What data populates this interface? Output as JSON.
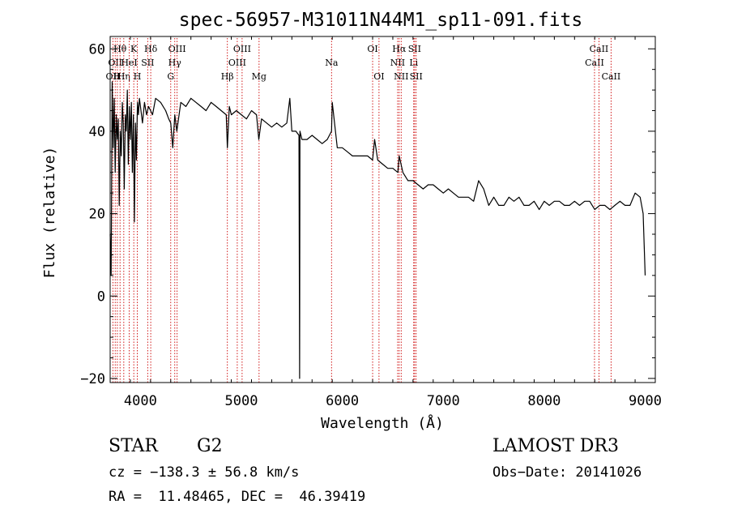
{
  "chart_data": {
    "type": "line",
    "title": "spec-56957-M31011N44M1_sp11-091.fits",
    "xlabel": "Wavelength (Å)",
    "ylabel": "Flux (relative)",
    "xlim": [
      3700,
      9100
    ],
    "ylim": [
      -21,
      63
    ],
    "x_ticks": [
      4000,
      5000,
      6000,
      7000,
      8000,
      9000
    ],
    "y_ticks": [
      -20,
      0,
      20,
      40,
      60
    ],
    "x_tick_labels": [
      "4000",
      "5000",
      "6000",
      "7000",
      "8000",
      "9000"
    ],
    "y_tick_labels": [
      "−20",
      "0",
      "20",
      "40",
      "60"
    ],
    "grid": false,
    "line_color": "#000000",
    "marker_color": "#cc0000",
    "series": [
      {
        "x": [
          3700,
          3710,
          3720,
          3730,
          3740,
          3750,
          3760,
          3770,
          3780,
          3790,
          3800,
          3810,
          3820,
          3830,
          3840,
          3850,
          3860,
          3870,
          3880,
          3890,
          3900,
          3910,
          3920,
          3930,
          3940,
          3950,
          3960,
          3970,
          3980,
          3990,
          4000,
          4020,
          4040,
          4060,
          4080,
          4100,
          4120,
          4150,
          4200,
          4250,
          4280,
          4300,
          4320,
          4340,
          4360,
          4400,
          4450,
          4500,
          4550,
          4600,
          4650,
          4700,
          4750,
          4800,
          4850,
          4861,
          4880,
          4900,
          4950,
          5000,
          5050,
          5100,
          5150,
          5172,
          5200,
          5250,
          5300,
          5350,
          5400,
          5450,
          5480,
          5500,
          5540,
          5570,
          5577,
          5580,
          5600,
          5650,
          5700,
          5750,
          5800,
          5850,
          5893,
          5900,
          5950,
          6000,
          6050,
          6100,
          6150,
          6200,
          6250,
          6300,
          6320,
          6350,
          6400,
          6450,
          6500,
          6550,
          6563,
          6600,
          6650,
          6700,
          6750,
          6800,
          6850,
          6900,
          6950,
          7000,
          7050,
          7100,
          7150,
          7200,
          7250,
          7300,
          7350,
          7400,
          7450,
          7500,
          7550,
          7600,
          7650,
          7700,
          7750,
          7800,
          7850,
          7900,
          7950,
          8000,
          8050,
          8100,
          8150,
          8200,
          8250,
          8300,
          8350,
          8400,
          8450,
          8500,
          8550,
          8600,
          8650,
          8700,
          8750,
          8800,
          8850,
          8900,
          8950,
          8980,
          9000
        ],
        "y": [
          15,
          5,
          52,
          36,
          48,
          30,
          44,
          38,
          43,
          22,
          40,
          34,
          47,
          42,
          26,
          44,
          40,
          50,
          32,
          46,
          38,
          47,
          30,
          44,
          18,
          42,
          33,
          47,
          44,
          48,
          46,
          42,
          47,
          44,
          46,
          45,
          44,
          48,
          47,
          45,
          43,
          42,
          36,
          44,
          40,
          47,
          46,
          48,
          47,
          46,
          45,
          47,
          46,
          45,
          44,
          36,
          46,
          44,
          45,
          44,
          43,
          45,
          44,
          38,
          43,
          42,
          41,
          42,
          41,
          42,
          48,
          40,
          40,
          39,
          -20,
          40,
          38,
          38,
          39,
          38,
          37,
          38,
          40,
          47,
          36,
          36,
          35,
          34,
          34,
          34,
          34,
          33,
          38,
          33,
          32,
          31,
          31,
          30,
          34,
          30,
          28,
          28,
          27,
          26,
          27,
          27,
          26,
          25,
          26,
          25,
          24,
          24,
          24,
          23,
          28,
          26,
          22,
          24,
          22,
          22,
          24,
          23,
          24,
          22,
          22,
          23,
          21,
          23,
          22,
          23,
          23,
          22,
          22,
          23,
          22,
          23,
          23,
          21,
          22,
          22,
          21,
          22,
          23,
          22,
          22,
          25,
          24,
          20,
          5
        ]
      }
    ],
    "line_markers": [
      {
        "wavelength": 3727,
        "label": "OII",
        "row": 2
      },
      {
        "wavelength": 3750,
        "label": "OII",
        "row": 1
      },
      {
        "wavelength": 3771,
        "label": "H",
        "row": 2
      },
      {
        "wavelength": 3798,
        "label": "Hθ",
        "row": 0
      },
      {
        "wavelength": 3835,
        "label": "Hη",
        "row": 2
      },
      {
        "wavelength": 3889,
        "label": "HeI",
        "row": 1
      },
      {
        "wavelength": 3934,
        "label": "K",
        "row": 0
      },
      {
        "wavelength": 3969,
        "label": "H",
        "row": 2
      },
      {
        "wavelength": 4072,
        "label": "SII",
        "row": 1
      },
      {
        "wavelength": 4102,
        "label": "Hδ",
        "row": 0
      },
      {
        "wavelength": 4300,
        "label": "G",
        "row": 2
      },
      {
        "wavelength": 4340,
        "label": "Hγ",
        "row": 1
      },
      {
        "wavelength": 4363,
        "label": "OIII",
        "row": 0
      },
      {
        "wavelength": 4861,
        "label": "Hβ",
        "row": 2
      },
      {
        "wavelength": 4959,
        "label": "OIII",
        "row": 1
      },
      {
        "wavelength": 5007,
        "label": "OIII",
        "row": 0
      },
      {
        "wavelength": 5175,
        "label": "Mg",
        "row": 2
      },
      {
        "wavelength": 5893,
        "label": "Na",
        "row": 1
      },
      {
        "wavelength": 6300,
        "label": "OI",
        "row": 0
      },
      {
        "wavelength": 6363,
        "label": "OI",
        "row": 2
      },
      {
        "wavelength": 6548,
        "label": "NII",
        "row": 1
      },
      {
        "wavelength": 6563,
        "label": "Hα",
        "row": 0
      },
      {
        "wavelength": 6583,
        "label": "NII",
        "row": 2
      },
      {
        "wavelength": 6707,
        "label": "Li",
        "row": 1
      },
      {
        "wavelength": 6716,
        "label": "SII",
        "row": 0
      },
      {
        "wavelength": 6731,
        "label": "SII",
        "row": 2
      },
      {
        "wavelength": 8498,
        "label": "CaII",
        "row": 1
      },
      {
        "wavelength": 8542,
        "label": "CaII",
        "row": 0
      },
      {
        "wavelength": 8662,
        "label": "CaII",
        "row": 2
      }
    ]
  },
  "info": {
    "object_class": "STAR",
    "subclass": "G2",
    "survey": "LAMOST DR3",
    "redshift_line": "cz = −138.3 ± 56.8 km/s",
    "obs_date_line": "Obs−Date: 20141026",
    "coords_line": "RA =  11.48465, DEC =  46.39419"
  }
}
